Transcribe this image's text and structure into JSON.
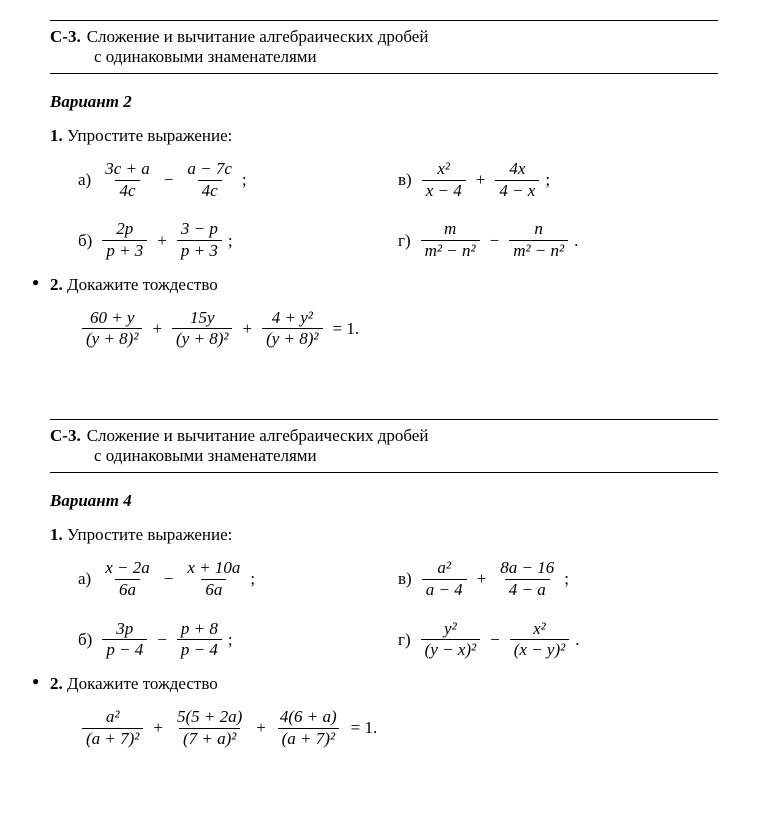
{
  "section1": {
    "code": "С-3.",
    "title_l1": "Сложение и вычитание алгебраических дробей",
    "title_l2": "с одинаковыми знаменателями",
    "variant": "Вариант 2",
    "task1_num": "1.",
    "task1_text": "Упростите выражение:",
    "sub": {
      "a": {
        "label": "а)",
        "n1": "3c + a",
        "d1": "4c",
        "op": "−",
        "n2": "a − 7c",
        "d2": "4c",
        "end": ";"
      },
      "b": {
        "label": "б)",
        "n1": "2p",
        "d1": "p + 3",
        "op": "+",
        "n2": "3 − p",
        "d2": "p + 3",
        "end": ";"
      },
      "v": {
        "label": "в)",
        "n1": "x²",
        "d1": "x − 4",
        "op": "+",
        "n2": "4x",
        "d2": "4 − x",
        "end": ";"
      },
      "g": {
        "label": "г)",
        "n1": "m",
        "d1": "m² − n²",
        "op": "−",
        "n2": "n",
        "d2": "m² − n²",
        "end": "."
      }
    },
    "task2_num": "2.",
    "task2_text": "Докажите тождество",
    "eq": {
      "t1n": "60 + y",
      "t1d": "(y + 8)²",
      "t2n": "15y",
      "t2d": "(y + 8)²",
      "t3n": "4 + y²",
      "t3d": "(y + 8)²",
      "rhs": "= 1."
    }
  },
  "section2": {
    "code": "С-3.",
    "title_l1": "Сложение и вычитание алгебраических дробей",
    "title_l2": "с одинаковыми знаменателями",
    "variant": "Вариант 4",
    "task1_num": "1.",
    "task1_text": "Упростите выражение:",
    "sub": {
      "a": {
        "label": "а)",
        "n1": "x − 2a",
        "d1": "6a",
        "op": "−",
        "n2": "x + 10a",
        "d2": "6a",
        "end": ";"
      },
      "b": {
        "label": "б)",
        "n1": "3p",
        "d1": "p − 4",
        "op": "−",
        "n2": "p + 8",
        "d2": "p − 4",
        "end": ";"
      },
      "v": {
        "label": "в)",
        "n1": "a²",
        "d1": "a − 4",
        "op": "+",
        "n2": "8a − 16",
        "d2": "4 − a",
        "end": ";"
      },
      "g": {
        "label": "г)",
        "n1": "y²",
        "d1": "(y − x)²",
        "op": "−",
        "n2": "x²",
        "d2": "(x − y)²",
        "end": "."
      }
    },
    "task2_num": "2.",
    "task2_text": "Докажите тождество",
    "eq": {
      "t1n": "a²",
      "t1d": "(a + 7)²",
      "t2n": "5(5 + 2a)",
      "t2d": "(7 + a)²",
      "t3n": "4(6 + a)",
      "t3d": "(a + 7)²",
      "rhs": "= 1."
    }
  },
  "ops": {
    "plus": "+"
  }
}
